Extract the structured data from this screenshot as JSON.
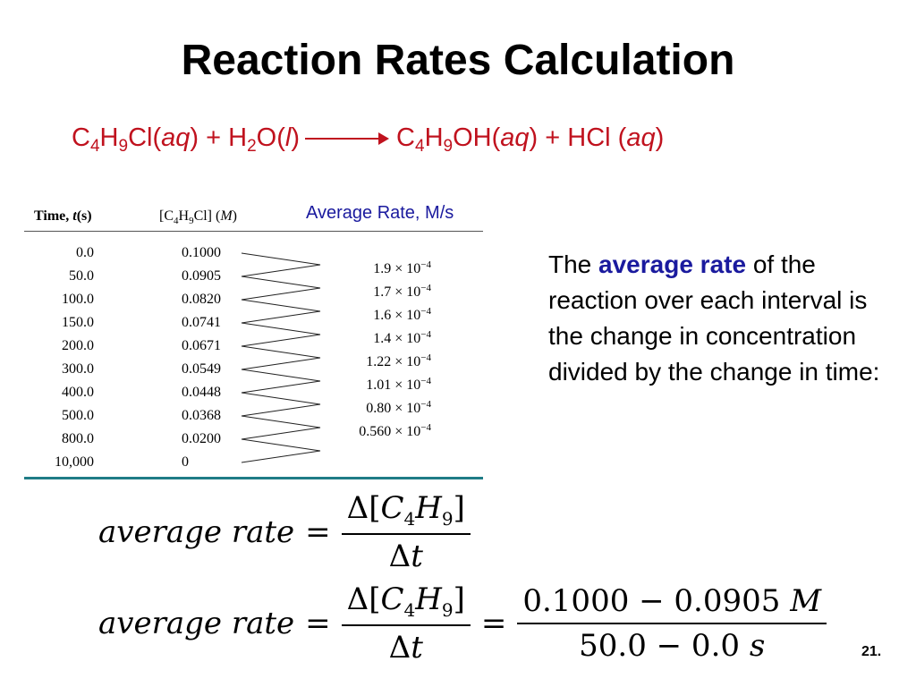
{
  "slide": {
    "title": "Reaction Rates Calculation",
    "page_number": "21."
  },
  "equation": {
    "reactant1": {
      "a": "C",
      "s1": "4",
      "b": "H",
      "s2": "9",
      "c": "Cl(",
      "phase": "aq",
      "close": ")"
    },
    "plus1": " + ",
    "reactant2": {
      "a": "H",
      "s1": "2",
      "b": "O(",
      "phase": "l",
      "close": ")"
    },
    "product1": {
      "a": "C",
      "s1": "4",
      "b": "H",
      "s2": "9",
      "c": "OH(",
      "phase": "aq",
      "close": ")"
    },
    "plus2": " + ",
    "product2": {
      "a": "HCl (",
      "phase": "aq",
      "close": ")"
    }
  },
  "table": {
    "avg_rate_header": "Average Rate, M/s",
    "col_time": {
      "prefix": "Time, ",
      "var": "t",
      "suffix": "(s)"
    },
    "col_conc": {
      "a": "[C",
      "s1": "4",
      "b": "H",
      "s2": "9",
      "c": "Cl] (",
      "unit": "M",
      "close": ")"
    },
    "times": [
      "0.0",
      "50.0",
      "100.0",
      "150.0",
      "200.0",
      "300.0",
      "400.0",
      "500.0",
      "800.0",
      "10,000"
    ],
    "concentrations": [
      "0.1000",
      "0.0905",
      "0.0820",
      "0.0741",
      "0.0671",
      "0.0549",
      "0.0448",
      "0.0368",
      "0.0200",
      "0"
    ],
    "rates": [
      {
        "mantissa": "1.9 × 10",
        "exp": "−4"
      },
      {
        "mantissa": "1.7 × 10",
        "exp": "−4"
      },
      {
        "mantissa": "1.6 × 10",
        "exp": "−4"
      },
      {
        "mantissa": "1.4 × 10",
        "exp": "−4"
      },
      {
        "mantissa": "1.22 × 10",
        "exp": "−4"
      },
      {
        "mantissa": "1.01 × 10",
        "exp": "−4"
      },
      {
        "mantissa": "0.80 × 10",
        "exp": "−4"
      },
      {
        "mantissa": "0.560 × 10",
        "exp": "−4"
      }
    ]
  },
  "description": {
    "before": "The ",
    "highlight": "average rate",
    "after": " of the reaction over each interval is the change in concentration divided by the change in time:"
  },
  "formula1": {
    "lhs": "average rate",
    "eq": "=",
    "num": {
      "delta": "Δ",
      "open": "[",
      "a": "C",
      "s1": "4",
      "b": "H",
      "s2": "9",
      "close": "]"
    },
    "den": {
      "delta": "Δ",
      "var": "t"
    }
  },
  "formula2": {
    "lhs": "average rate",
    "eq": "=",
    "num": {
      "delta": "Δ",
      "open": "[",
      "a": "C",
      "s1": "4",
      "b": "H",
      "s2": "9",
      "close": "]"
    },
    "den": {
      "delta": "Δ",
      "var": "t"
    },
    "eq2": "=",
    "num2": {
      "expr": "0.1000 − 0.0905",
      "unit": "M"
    },
    "den2": {
      "expr": "50.0 − 0.0",
      "unit": "s"
    }
  }
}
